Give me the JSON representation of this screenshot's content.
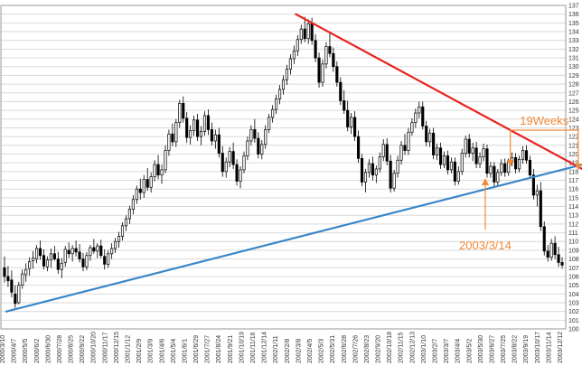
{
  "chart_data": {
    "type": "candlestick",
    "title": "",
    "xlabel": "",
    "ylabel": "",
    "ylim": [
      100,
      137
    ],
    "y_ticks": [
      100,
      101,
      102,
      103,
      104,
      105,
      106,
      107,
      108,
      109,
      110,
      111,
      112,
      113,
      114,
      115,
      116,
      117,
      118,
      119,
      120,
      121,
      122,
      123,
      124,
      125,
      126,
      127,
      128,
      129,
      130,
      131,
      132,
      133,
      134,
      135,
      136,
      137
    ],
    "x_tick_labels": [
      "2000/3/10",
      "2000/4/7",
      "2000/5/5",
      "2000/6/2",
      "2000/6/30",
      "2000/7/28",
      "2000/8/25",
      "2000/9/22",
      "2000/10/20",
      "2000/11/17",
      "2000/12/15",
      "2001/1/12",
      "2001/2/9",
      "2001/3/9",
      "2001/4/6",
      "2001/5/4",
      "2001/6/1",
      "2001/6/29",
      "2001/7/27",
      "2001/8/24",
      "2001/9/21",
      "2001/10/19",
      "2001/11/16",
      "2001/12/14",
      "2002/1/11",
      "2002/2/8",
      "2002/3/8",
      "2002/4/5",
      "2002/5/3",
      "2002/5/31",
      "2002/6/28",
      "2002/7/26",
      "2002/8/23",
      "2002/9/20",
      "2002/10/18",
      "2002/11/15",
      "2002/12/13",
      "2003/1/10",
      "2003/2/7",
      "2003/3/7",
      "2003/4/4",
      "2003/5/2",
      "2003/5/30",
      "2003/6/27",
      "2003/7/25",
      "2003/8/22",
      "2003/9/19",
      "2003/10/17",
      "2003/11/14",
      "2003/12/12"
    ],
    "candles": [
      [
        107.0,
        108.3,
        105.3,
        106.0
      ],
      [
        106.0,
        107.2,
        104.8,
        105.5
      ],
      [
        105.6,
        106.7,
        103.6,
        104.2
      ],
      [
        104.0,
        105.0,
        102.4,
        102.9
      ],
      [
        103.0,
        105.4,
        102.8,
        105.0
      ],
      [
        105.0,
        106.8,
        104.6,
        106.3
      ],
      [
        106.2,
        107.5,
        105.4,
        106.8
      ],
      [
        106.9,
        108.2,
        106.1,
        107.7
      ],
      [
        107.8,
        108.9,
        106.9,
        108.1
      ],
      [
        108.0,
        109.6,
        107.5,
        109.2
      ],
      [
        109.2,
        110.1,
        107.9,
        108.4
      ],
      [
        108.4,
        109.1,
        106.8,
        107.2
      ],
      [
        107.1,
        108.3,
        106.6,
        107.9
      ],
      [
        107.9,
        109.2,
        107.0,
        108.6
      ],
      [
        108.6,
        109.5,
        107.8,
        108.0
      ],
      [
        108.0,
        108.8,
        106.3,
        106.8
      ],
      [
        106.8,
        108.1,
        105.8,
        107.5
      ],
      [
        107.6,
        109.5,
        107.1,
        109.1
      ],
      [
        109.0,
        109.9,
        108.1,
        108.6
      ],
      [
        108.6,
        109.6,
        107.7,
        109.2
      ],
      [
        109.2,
        110.1,
        108.3,
        108.8
      ],
      [
        108.8,
        109.7,
        107.6,
        108.0
      ],
      [
        108.0,
        108.7,
        106.6,
        107.1
      ],
      [
        107.1,
        108.8,
        106.7,
        108.4
      ],
      [
        108.4,
        109.6,
        107.8,
        109.3
      ],
      [
        109.3,
        110.3,
        108.6,
        108.9
      ],
      [
        108.9,
        109.8,
        108.1,
        109.5
      ],
      [
        109.5,
        110.2,
        108.1,
        108.4
      ],
      [
        108.3,
        109.1,
        106.8,
        107.4
      ],
      [
        107.4,
        109.0,
        107.0,
        108.6
      ],
      [
        108.6,
        109.8,
        108.0,
        109.2
      ],
      [
        109.2,
        110.4,
        108.7,
        110.0
      ],
      [
        110.0,
        111.1,
        109.3,
        110.6
      ],
      [
        110.6,
        112.2,
        110.1,
        111.8
      ],
      [
        111.8,
        113.0,
        111.2,
        112.6
      ],
      [
        112.6,
        114.1,
        112.0,
        113.7
      ],
      [
        113.7,
        115.3,
        113.1,
        114.8
      ],
      [
        114.8,
        116.4,
        114.3,
        116.0
      ],
      [
        116.0,
        117.2,
        114.8,
        115.6
      ],
      [
        115.6,
        117.6,
        115.0,
        117.1
      ],
      [
        117.1,
        118.4,
        115.8,
        116.2
      ],
      [
        116.2,
        117.9,
        115.6,
        117.4
      ],
      [
        117.4,
        119.3,
        116.9,
        118.8
      ],
      [
        118.8,
        119.9,
        117.1,
        117.6
      ],
      [
        117.6,
        118.8,
        116.6,
        118.2
      ],
      [
        118.2,
        121.0,
        117.8,
        120.4
      ],
      [
        120.4,
        122.8,
        119.8,
        122.3
      ],
      [
        122.3,
        123.5,
        120.9,
        121.4
      ],
      [
        121.4,
        124.0,
        120.8,
        123.6
      ],
      [
        123.6,
        126.2,
        123.0,
        125.8
      ],
      [
        125.8,
        126.6,
        123.6,
        124.1
      ],
      [
        124.1,
        124.8,
        121.3,
        121.9
      ],
      [
        121.9,
        123.3,
        121.1,
        122.7
      ],
      [
        122.7,
        124.4,
        122.1,
        123.9
      ],
      [
        123.9,
        124.6,
        121.5,
        122.0
      ],
      [
        122.0,
        123.2,
        121.0,
        122.6
      ],
      [
        122.6,
        124.9,
        122.1,
        124.4
      ],
      [
        124.4,
        125.1,
        122.2,
        122.8
      ],
      [
        122.8,
        123.6,
        121.0,
        121.5
      ],
      [
        121.5,
        122.8,
        120.6,
        122.2
      ],
      [
        122.2,
        123.0,
        119.6,
        120.1
      ],
      [
        120.1,
        120.9,
        117.4,
        118.0
      ],
      [
        118.0,
        119.6,
        117.3,
        119.1
      ],
      [
        119.1,
        120.8,
        118.5,
        120.3
      ],
      [
        120.3,
        121.3,
        118.3,
        118.8
      ],
      [
        118.8,
        119.4,
        116.4,
        116.9
      ],
      [
        116.9,
        118.6,
        116.1,
        118.2
      ],
      [
        118.2,
        120.3,
        117.8,
        119.8
      ],
      [
        119.8,
        122.0,
        119.3,
        121.5
      ],
      [
        121.5,
        123.3,
        121.0,
        122.8
      ],
      [
        122.8,
        124.0,
        121.3,
        121.8
      ],
      [
        121.8,
        122.5,
        119.5,
        120.0
      ],
      [
        120.0,
        121.6,
        119.4,
        121.1
      ],
      [
        121.1,
        123.3,
        120.6,
        122.8
      ],
      [
        122.8,
        124.6,
        122.4,
        124.2
      ],
      [
        124.2,
        125.6,
        123.6,
        125.1
      ],
      [
        125.1,
        126.8,
        124.6,
        126.3
      ],
      [
        126.3,
        127.9,
        125.7,
        127.4
      ],
      [
        127.4,
        129.0,
        126.8,
        128.5
      ],
      [
        128.5,
        130.2,
        127.9,
        129.7
      ],
      [
        129.7,
        131.4,
        129.1,
        130.9
      ],
      [
        130.9,
        132.4,
        130.3,
        131.8
      ],
      [
        131.8,
        133.6,
        131.2,
        133.1
      ],
      [
        133.1,
        134.8,
        132.6,
        134.3
      ],
      [
        134.3,
        135.7,
        132.8,
        133.2
      ],
      [
        133.2,
        135.4,
        132.6,
        134.9
      ],
      [
        134.9,
        135.6,
        132.5,
        133.0
      ],
      [
        133.0,
        133.7,
        130.5,
        131.0
      ],
      [
        131.0,
        131.6,
        127.6,
        128.2
      ],
      [
        128.2,
        130.8,
        127.7,
        130.3
      ],
      [
        130.3,
        132.8,
        129.8,
        132.3
      ],
      [
        132.3,
        133.9,
        131.1,
        131.5
      ],
      [
        131.5,
        132.2,
        129.4,
        130.0
      ],
      [
        130.0,
        130.6,
        127.7,
        128.2
      ],
      [
        128.2,
        128.8,
        125.6,
        126.1
      ],
      [
        126.1,
        127.3,
        124.6,
        125.0
      ],
      [
        125.0,
        126.1,
        122.6,
        123.1
      ],
      [
        123.1,
        124.7,
        122.3,
        124.2
      ],
      [
        124.2,
        124.9,
        121.5,
        122.0
      ],
      [
        122.0,
        122.7,
        119.0,
        119.5
      ],
      [
        119.5,
        120.0,
        116.3,
        116.8
      ],
      [
        116.8,
        118.3,
        115.6,
        117.9
      ],
      [
        117.9,
        119.4,
        117.3,
        118.9
      ],
      [
        118.9,
        119.7,
        117.0,
        117.6
      ],
      [
        117.6,
        118.7,
        116.7,
        118.3
      ],
      [
        118.3,
        120.2,
        117.9,
        119.7
      ],
      [
        119.7,
        121.7,
        119.2,
        121.1
      ],
      [
        121.1,
        121.8,
        118.7,
        119.2
      ],
      [
        119.2,
        119.9,
        115.6,
        116.1
      ],
      [
        116.1,
        118.2,
        115.7,
        117.8
      ],
      [
        117.8,
        119.8,
        117.3,
        119.3
      ],
      [
        119.3,
        121.5,
        118.8,
        121.0
      ],
      [
        121.0,
        122.3,
        119.9,
        120.4
      ],
      [
        120.4,
        123.0,
        119.9,
        122.5
      ],
      [
        122.5,
        124.1,
        122.1,
        123.6
      ],
      [
        123.6,
        125.2,
        123.0,
        124.7
      ],
      [
        124.7,
        126.0,
        124.1,
        125.4
      ],
      [
        125.4,
        126.0,
        122.8,
        123.2
      ],
      [
        123.2,
        123.8,
        120.9,
        121.4
      ],
      [
        121.4,
        122.9,
        120.8,
        122.4
      ],
      [
        122.4,
        123.0,
        119.4,
        119.9
      ],
      [
        119.9,
        121.2,
        119.3,
        120.7
      ],
      [
        120.7,
        121.3,
        118.3,
        118.8
      ],
      [
        118.8,
        120.3,
        118.4,
        119.8
      ],
      [
        119.8,
        120.4,
        117.7,
        118.2
      ],
      [
        118.2,
        119.6,
        117.8,
        119.1
      ],
      [
        119.1,
        119.6,
        116.4,
        116.9
      ],
      [
        116.9,
        118.6,
        116.5,
        118.0
      ],
      [
        118.0,
        120.6,
        117.6,
        120.1
      ],
      [
        120.1,
        122.1,
        119.6,
        121.7
      ],
      [
        121.7,
        122.3,
        119.6,
        120.1
      ],
      [
        120.1,
        121.3,
        119.2,
        120.7
      ],
      [
        120.7,
        121.4,
        118.4,
        118.9
      ],
      [
        118.9,
        120.2,
        118.4,
        119.7
      ],
      [
        119.7,
        121.2,
        119.2,
        120.6
      ],
      [
        120.6,
        121.1,
        117.3,
        117.8
      ],
      [
        117.8,
        119.1,
        117.3,
        118.6
      ],
      [
        118.6,
        119.1,
        116.3,
        116.8
      ],
      [
        116.8,
        118.3,
        116.4,
        117.9
      ],
      [
        117.9,
        119.4,
        117.5,
        118.9
      ],
      [
        118.9,
        119.5,
        117.4,
        117.9
      ],
      [
        117.9,
        119.5,
        117.5,
        119.1
      ],
      [
        119.1,
        120.2,
        118.6,
        119.6
      ],
      [
        119.6,
        120.1,
        117.8,
        118.3
      ],
      [
        118.3,
        119.8,
        117.9,
        119.4
      ],
      [
        119.4,
        120.9,
        118.9,
        120.4
      ],
      [
        120.4,
        121.0,
        118.9,
        119.3
      ],
      [
        119.3,
        119.8,
        117.2,
        117.6
      ],
      [
        117.6,
        118.3,
        114.8,
        115.3
      ],
      [
        115.3,
        116.5,
        114.0,
        115.8
      ],
      [
        115.8,
        116.8,
        111.2,
        111.7
      ],
      [
        111.7,
        112.3,
        108.4,
        108.9
      ],
      [
        108.9,
        109.6,
        107.7,
        108.2
      ],
      [
        108.2,
        110.3,
        107.8,
        109.8
      ],
      [
        109.8,
        110.6,
        108.0,
        108.5
      ],
      [
        108.5,
        109.4,
        107.1,
        107.6
      ],
      [
        107.6,
        108.2,
        106.9,
        107.3
      ]
    ],
    "trendlines": [
      {
        "name": "",
        "color": "#3a86c8",
        "points": [
          [
            0.5,
            102.0
          ],
          [
            165.5,
            119.2
          ]
        ]
      },
      {
        "name": "",
        "color": "#e8231f",
        "points": [
          [
            81.5,
            136.0
          ],
          [
            172.0,
            116.0
          ]
        ]
      }
    ],
    "annotations": [
      {
        "text": "19Weeks",
        "color": "#f08a3a"
      },
      {
        "text": "2003/3/14",
        "color": "#f08a3a"
      }
    ]
  },
  "colors": {
    "background": "#ffffff",
    "grid": "#d9d9d9",
    "axis_text": "#333333",
    "bull_candle": "#ffffff",
    "bear_candle": "#000000",
    "support_line": "#3a86c8",
    "resistance_line": "#e8231f",
    "annotation": "#f08a3a"
  }
}
